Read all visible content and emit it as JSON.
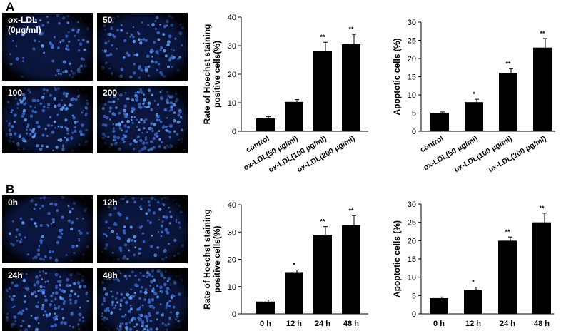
{
  "panels": [
    {
      "label": "A",
      "images": [
        [
          "ox-LDL",
          "(0μg/ml)"
        ],
        [
          "50"
        ],
        [
          "100"
        ],
        [
          "200"
        ]
      ]
    },
    {
      "label": "B",
      "images": [
        [
          "0h"
        ],
        [
          "12h"
        ],
        [
          "24h"
        ],
        [
          "48h"
        ]
      ]
    }
  ],
  "chart_data": [
    {
      "type": "bar",
      "ylabel": [
        "Rate of Hoechst staining",
        "positive cells(%)"
      ],
      "categories": [
        "control",
        "ox-LDL(50 μg/ml)",
        "ox-LDL(100 μg/ml)",
        "ox-LDL(200 μg/ml)"
      ],
      "values": [
        4.5,
        10.3,
        28,
        30.5
      ],
      "errors": [
        0.6,
        0.8,
        3.2,
        3.5
      ],
      "significance": [
        null,
        null,
        "**",
        "**"
      ],
      "color": "#000000",
      "ylim": [
        0,
        40
      ],
      "yticks": [
        0,
        10,
        20,
        30,
        40
      ]
    },
    {
      "type": "bar",
      "ylabel": [
        "Apoptotic cells (%)"
      ],
      "categories": [
        "control",
        "ox-LDL(50 μg/ml)",
        "ox-LDL(100 μg/ml)",
        "ox-LDL(200 μg/ml)"
      ],
      "values": [
        5,
        8,
        16,
        23
      ],
      "errors": [
        0.3,
        0.8,
        1.2,
        2.5
      ],
      "significance": [
        null,
        "*",
        "**",
        "**"
      ],
      "color": "#000000",
      "ylim": [
        0,
        30
      ],
      "yticks": [
        0,
        5,
        10,
        15,
        20,
        25,
        30
      ]
    },
    {
      "type": "bar",
      "ylabel": [
        "Rate of Hoechst staining",
        "positive cells(%)"
      ],
      "categories": [
        "0 h",
        "12 h",
        "24 h",
        "48 h"
      ],
      "values": [
        4.5,
        15.3,
        29,
        32.5
      ],
      "errors": [
        0.6,
        0.8,
        3,
        3.5
      ],
      "significance": [
        null,
        "*",
        "**",
        "**"
      ],
      "color": "#000000",
      "ylim": [
        0,
        40
      ],
      "yticks": [
        0,
        10,
        20,
        30,
        40
      ]
    },
    {
      "type": "bar",
      "ylabel": [
        "Apoptotic cells (%)"
      ],
      "categories": [
        "0 h",
        "12 h",
        "24 h",
        "48 h"
      ],
      "values": [
        4.3,
        6.5,
        20,
        25
      ],
      "errors": [
        0.3,
        0.8,
        1,
        2.5
      ],
      "significance": [
        null,
        "*",
        "**",
        "**"
      ],
      "color": "#000000",
      "ylim": [
        0,
        30
      ],
      "yticks": [
        0,
        5,
        10,
        15,
        20,
        25,
        30
      ]
    }
  ]
}
